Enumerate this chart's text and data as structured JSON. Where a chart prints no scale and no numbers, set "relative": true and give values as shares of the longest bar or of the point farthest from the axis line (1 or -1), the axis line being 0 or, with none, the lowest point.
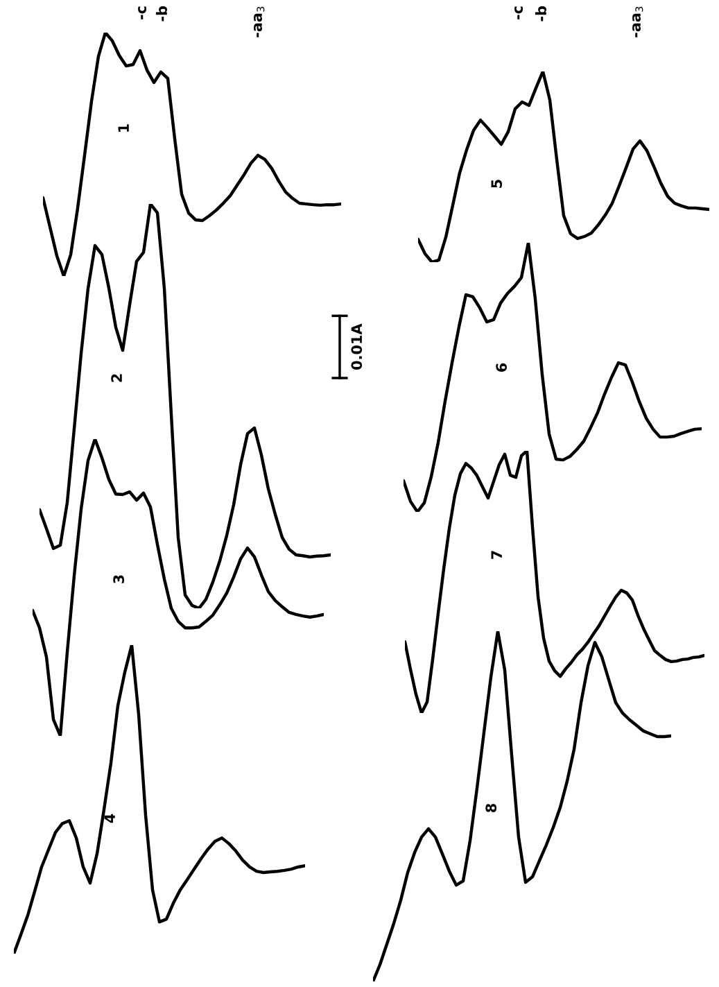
{
  "chart_data": [
    {
      "type": "line",
      "relative": true,
      "categories": [
        null,
        null,
        null,
        null,
        null,
        null,
        null,
        null,
        null,
        null,
        null,
        null,
        null,
        null,
        null,
        null,
        null,
        null,
        null,
        null,
        null,
        null,
        null,
        null,
        null,
        null,
        null,
        null,
        null,
        null,
        null,
        null,
        null,
        null,
        null,
        null,
        null,
        null,
        null,
        null,
        null,
        null,
        null,
        null
      ],
      "series": [
        {
          "name": "1",
          "color": "#000000",
          "values": [
            0.322,
            0.202,
            0.083,
            0,
            0.088,
            0.279,
            0.496,
            0.718,
            0.903,
            1,
            0.966,
            0.906,
            0.863,
            0.869,
            0.926,
            0.846,
            0.795,
            0.838,
            0.812,
            0.564,
            0.336,
            0.259,
            0.231,
            0.228,
            0.248,
            0.271,
            0.299,
            0.33,
            0.373,
            0.416,
            0.464,
            0.496,
            0.479,
            0.442,
            0.39,
            0.345,
            0.319,
            0.299,
            0.296,
            0.293,
            0.291,
            0.293,
            0.293,
            0.296
          ]
        }
      ],
      "annotations": [
        "-c",
        "-b",
        "-aa$_{3}$",
        "-c",
        "-b",
        "-aa$_{3}$",
        "0.01A"
      ]
    },
    {
      "type": "line",
      "relative": true,
      "categories": [
        null,
        null,
        null,
        null,
        null,
        null,
        null,
        null,
        null,
        null,
        null,
        null,
        null,
        null,
        null,
        null,
        null,
        null,
        null,
        null,
        null,
        null,
        null,
        null,
        null,
        null,
        null,
        null,
        null,
        null,
        null,
        null,
        null,
        null,
        null,
        null,
        null,
        null,
        null,
        null,
        null,
        null,
        null
      ],
      "series": [
        {
          "name": "2",
          "color": "#000000",
          "values": [
            0.244,
            0.197,
            0.148,
            0.156,
            0.262,
            0.444,
            0.63,
            0.791,
            0.897,
            0.875,
            0.792,
            0.695,
            0.638,
            0.751,
            0.858,
            0.88,
            1,
            0.978,
            0.791,
            0.479,
            0.175,
            0.033,
            0.007,
            0,
            0.022,
            0.065,
            0.117,
            0.18,
            0.256,
            0.355,
            0.432,
            0.446,
            0.379,
            0.295,
            0.232,
            0.175,
            0.146,
            0.132,
            0.13,
            0.127,
            0.129,
            0.13,
            0.132
          ]
        }
      ]
    },
    {
      "type": "line",
      "relative": true,
      "categories": [
        null,
        null,
        null,
        null,
        null,
        null,
        null,
        null,
        null,
        null,
        null,
        null,
        null,
        null,
        null,
        null,
        null,
        null,
        null,
        null,
        null,
        null,
        null,
        null,
        null,
        null,
        null,
        null,
        null,
        null,
        null,
        null,
        null,
        null,
        null,
        null,
        null,
        null,
        null,
        null,
        null,
        null,
        null
      ],
      "series": [
        {
          "name": "3",
          "color": "#000000",
          "values": [
            0.423,
            0.364,
            0.266,
            0.056,
            0,
            0.283,
            0.54,
            0.764,
            0.928,
            1,
            0.937,
            0.864,
            0.815,
            0.813,
            0.822,
            0.794,
            0.818,
            0.771,
            0.645,
            0.528,
            0.43,
            0.386,
            0.364,
            0.364,
            0.367,
            0.386,
            0.407,
            0.442,
            0.481,
            0.535,
            0.596,
            0.633,
            0.603,
            0.542,
            0.486,
            0.456,
            0.435,
            0.416,
            0.409,
            0.404,
            0.4,
            0.404,
            0.409
          ]
        }
      ]
    },
    {
      "type": "line",
      "relative": true,
      "categories": [
        null,
        null,
        null,
        null,
        null,
        null,
        null,
        null,
        null,
        null,
        null,
        null,
        null,
        null,
        null,
        null,
        null,
        null,
        null,
        null,
        null,
        null,
        null,
        null,
        null,
        null,
        null,
        null,
        null,
        null,
        null,
        null,
        null,
        null,
        null,
        null,
        null,
        null,
        null,
        null,
        null,
        null,
        null
      ],
      "series": [
        {
          "name": "4",
          "color": "#000000",
          "values": [
            0,
            0.061,
            0.124,
            0.202,
            0.281,
            0.337,
            0.393,
            0.422,
            0.431,
            0.375,
            0.281,
            0.229,
            0.324,
            0.467,
            0.618,
            0.804,
            0.912,
            1,
            0.775,
            0.449,
            0.207,
            0.103,
            0.112,
            0.164,
            0.207,
            0.24,
            0.274,
            0.308,
            0.339,
            0.364,
            0.375,
            0.357,
            0.333,
            0.303,
            0.281,
            0.267,
            0.263,
            0.265,
            0.267,
            0.27,
            0.274,
            0.281,
            0.285
          ]
        }
      ]
    },
    {
      "type": "line",
      "relative": true,
      "categories": [
        null,
        null,
        null,
        null,
        null,
        null,
        null,
        null,
        null,
        null,
        null,
        null,
        null,
        null,
        null,
        null,
        null,
        null,
        null,
        null,
        null,
        null,
        null,
        null,
        null,
        null,
        null,
        null,
        null,
        null,
        null,
        null,
        null,
        null,
        null,
        null,
        null,
        null,
        null,
        null,
        null,
        null,
        null
      ],
      "series": [
        {
          "name": "5",
          "color": "#000000",
          "values": [
            0.12,
            0.044,
            0,
            0.011,
            0.131,
            0.298,
            0.469,
            0.589,
            0.691,
            0.745,
            0.705,
            0.662,
            0.618,
            0.684,
            0.804,
            0.84,
            0.822,
            0.913,
            1,
            0.851,
            0.538,
            0.244,
            0.149,
            0.124,
            0.135,
            0.153,
            0.196,
            0.247,
            0.309,
            0.4,
            0.495,
            0.593,
            0.636,
            0.585,
            0.502,
            0.415,
            0.345,
            0.309,
            0.295,
            0.284,
            0.284,
            0.28,
            0.276
          ]
        }
      ]
    },
    {
      "type": "line",
      "relative": true,
      "categories": [
        null,
        null,
        null,
        null,
        null,
        null,
        null,
        null,
        null,
        null,
        null,
        null,
        null,
        null,
        null,
        null,
        null,
        null,
        null,
        null,
        null,
        null,
        null,
        null,
        null,
        null,
        null,
        null,
        null,
        null,
        null,
        null,
        null,
        null,
        null,
        null,
        null,
        null,
        null,
        null,
        null,
        null,
        null,
        null
      ],
      "series": [
        {
          "name": "6",
          "color": "#000000",
          "values": [
            0.116,
            0.039,
            0,
            0.034,
            0.131,
            0.258,
            0.412,
            0.554,
            0.688,
            0.807,
            0.799,
            0.758,
            0.706,
            0.714,
            0.776,
            0.812,
            0.838,
            0.871,
            1,
            0.791,
            0.51,
            0.289,
            0.196,
            0.193,
            0.206,
            0.232,
            0.263,
            0.314,
            0.369,
            0.438,
            0.5,
            0.554,
            0.546,
            0.482,
            0.41,
            0.348,
            0.307,
            0.278,
            0.278,
            0.281,
            0.291,
            0.299,
            0.307,
            0.309
          ]
        }
      ]
    },
    {
      "type": "line",
      "relative": true,
      "categories": [
        null,
        null,
        null,
        null,
        null,
        null,
        null,
        null,
        null,
        null,
        null,
        null,
        null,
        null,
        null,
        null,
        null,
        null,
        null,
        null,
        null,
        null,
        null,
        null,
        null,
        null,
        null,
        null,
        null,
        null,
        null,
        null,
        null,
        null,
        null,
        null,
        null,
        null,
        null,
        null,
        null,
        null,
        null,
        null,
        null,
        null,
        null,
        null,
        null,
        null,
        null,
        null,
        null,
        null,
        null
      ],
      "series": [
        {
          "name": "7",
          "color": "#000000",
          "values": [
            0.272,
            0.167,
            0.071,
            0,
            0.042,
            0.204,
            0.381,
            0.55,
            0.704,
            0.831,
            0.913,
            0.952,
            0.934,
            0.905,
            0.862,
            0.82,
            0.884,
            0.947,
            0.987,
            0.907,
            0.899,
            0.981,
            1,
            0.709,
            0.444,
            0.286,
            0.198,
            0.161,
            0.14,
            0.169,
            0.193,
            0.222,
            0.243,
            0.27,
            0.302,
            0.333,
            0.37,
            0.407,
            0.442,
            0.468,
            0.458,
            0.431,
            0.373,
            0.323,
            0.28,
            0.238,
            0.22,
            0.204,
            0.196,
            0.198,
            0.204,
            0.206,
            0.212,
            0.214,
            0.22
          ]
        }
      ]
    },
    {
      "type": "line",
      "relative": true,
      "categories": [
        null,
        null,
        null,
        null,
        null,
        null,
        null,
        null,
        null,
        null,
        null,
        null,
        null,
        null,
        null,
        null,
        null,
        null,
        null,
        null,
        null,
        null,
        null,
        null,
        null,
        null,
        null,
        null,
        null,
        null,
        null,
        null,
        null,
        null,
        null,
        null,
        null,
        null,
        null,
        null,
        null,
        null,
        null,
        null
      ],
      "series": [
        {
          "name": "8",
          "color": "#000000",
          "values": [
            0,
            0.048,
            0.107,
            0.166,
            0.232,
            0.311,
            0.368,
            0.412,
            0.436,
            0.412,
            0.364,
            0.315,
            0.275,
            0.287,
            0.402,
            0.552,
            0.711,
            0.869,
            1,
            0.889,
            0.646,
            0.412,
            0.283,
            0.299,
            0.345,
            0.39,
            0.44,
            0.497,
            0.572,
            0.663,
            0.796,
            0.901,
            0.968,
            0.927,
            0.861,
            0.796,
            0.766,
            0.747,
            0.731,
            0.715,
            0.707,
            0.699,
            0.699,
            0.701
          ]
        }
      ]
    }
  ]
}
